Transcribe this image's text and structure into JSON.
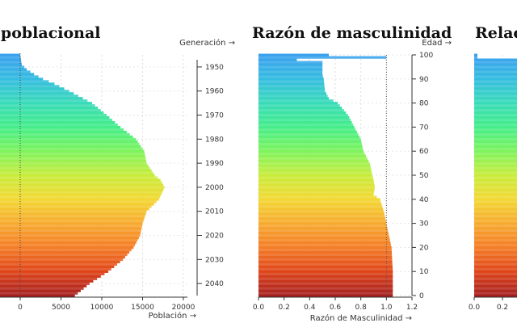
{
  "panels": {
    "left": {
      "title": "ra poblacional"
    },
    "middle": {
      "title": "Razón de masculinidad"
    },
    "right": {
      "title": "Relac"
    }
  },
  "colors": {
    "scale": [
      "#a51f1f",
      "#e0451a",
      "#f47d27",
      "#f7a92e",
      "#f3d733",
      "#c9ec3b",
      "#7ef35c",
      "#46ee8a",
      "#38dbb8",
      "#35bde0",
      "#3aa1ee"
    ]
  },
  "chart_data": [
    {
      "type": "bar",
      "orientation": "horizontal",
      "title": "ra poblacional",
      "xlabel": "Población →",
      "y2label": "Generación →",
      "xlim": [
        -2500,
        20000
      ],
      "xticks": [
        0,
        5000,
        10000,
        15000,
        20000
      ],
      "xtick_labels": [
        "0",
        "5000",
        "10000",
        "15000",
        "20000"
      ],
      "year_ticks": [
        1950,
        1960,
        1970,
        1980,
        1990,
        2000,
        2010,
        2020,
        2030,
        2040
      ],
      "profile_ages": [
        0,
        5,
        10,
        15,
        20,
        25,
        30,
        35,
        40,
        45,
        48,
        50,
        55,
        60,
        65,
        70,
        75,
        80,
        85,
        88,
        90,
        92,
        94,
        96,
        98,
        100
      ],
      "profile_values": [
        6700,
        8500,
        10800,
        12600,
        13900,
        14700,
        15000,
        15500,
        17000,
        17700,
        17200,
        16500,
        15500,
        15200,
        14200,
        12300,
        10600,
        8800,
        6000,
        4200,
        2800,
        1700,
        800,
        200,
        100,
        0
      ]
    },
    {
      "type": "bar",
      "orientation": "horizontal",
      "title": "Razón de masculinidad",
      "xlabel": "Razón de Masculinidad →",
      "ylabel": "Edad →",
      "xlim": [
        0,
        1.2
      ],
      "ylim": [
        0,
        100
      ],
      "xticks": [
        0.0,
        0.2,
        0.4,
        0.6,
        0.8,
        1.0,
        1.2
      ],
      "xtick_labels": [
        "0.0",
        "0.2",
        "0.4",
        "0.6",
        "0.8",
        "1.0",
        "1.2"
      ],
      "yticks": [
        0,
        10,
        20,
        30,
        40,
        50,
        60,
        70,
        80,
        90,
        100
      ],
      "ytick_labels": [
        "0",
        "10",
        "20",
        "30",
        "40",
        "50",
        "60",
        "70",
        "80",
        "90",
        "100"
      ],
      "reference_line": 1.0,
      "profile_ages": [
        0,
        10,
        20,
        25,
        30,
        35,
        40,
        42,
        45,
        48,
        50,
        55,
        60,
        65,
        70,
        75,
        80,
        82,
        85,
        90,
        92,
        95,
        97,
        98,
        99,
        100
      ],
      "profile_values": [
        1.05,
        1.05,
        1.04,
        1.02,
        1.0,
        0.98,
        0.95,
        0.9,
        0.91,
        0.9,
        0.89,
        0.87,
        0.82,
        0.8,
        0.75,
        0.7,
        0.62,
        0.55,
        0.52,
        0.51,
        0.5,
        0.5,
        0.5,
        0.3,
        1.0,
        0.55
      ]
    },
    {
      "type": "bar",
      "orientation": "horizontal",
      "title": "Relac",
      "xticks": [
        0.0,
        0.2
      ],
      "xtick_labels": [
        "0.0",
        "0.2"
      ]
    }
  ]
}
